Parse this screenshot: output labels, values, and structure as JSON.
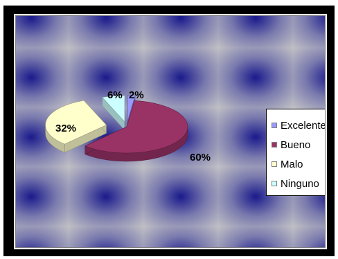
{
  "chart_data": {
    "type": "pie",
    "style": "3d-exploded",
    "labels": [
      "Excelente",
      "Bueno",
      "Malo",
      "Ninguno"
    ],
    "values": [
      2,
      60,
      32,
      6
    ],
    "data_labels": [
      "2%",
      "60%",
      "32%",
      "6%"
    ],
    "colors": [
      "#9999ff",
      "#993366",
      "#ffffcc",
      "#ccffff"
    ],
    "legend_position": "right",
    "title": ""
  },
  "background": {
    "pattern": "radial-tiles",
    "colors": [
      "#1a1a8c",
      "#c8c8c8"
    ]
  }
}
